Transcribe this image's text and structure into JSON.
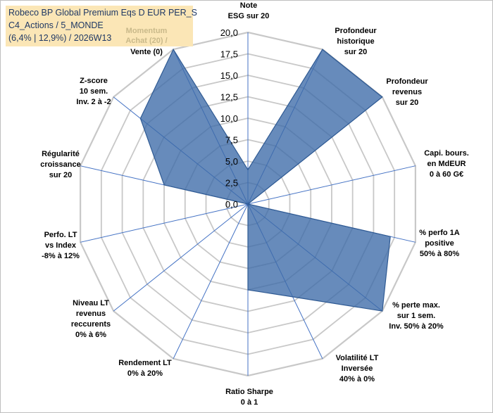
{
  "header": {
    "line1": "Robeco BP Global Premium Eqs D EUR PER_S",
    "line2": "C4_Actions / 5_MONDE",
    "line3": "(6,4% | 12,9%) / 2026W13"
  },
  "legend": {
    "line1": "Momentum",
    "line2": "Achat (20) /",
    "line3": "Vente (0)"
  },
  "colors": {
    "fill": "#3c6aa8",
    "stroke": "#2f5a93",
    "grid": "#c8c8c8",
    "spoke": "#4472c4"
  },
  "chart_data": {
    "type": "radar",
    "rmax": 20,
    "ticks": [
      "0,0",
      "2,5",
      "5,0",
      "7,5",
      "10,0",
      "12,5",
      "15,0",
      "17,5",
      "20,0"
    ],
    "axes": [
      {
        "label": [
          "Note",
          "ESG sur 20"
        ],
        "value": 4
      },
      {
        "label": [
          "Profondeur",
          "historique",
          "sur 20"
        ],
        "value": 20
      },
      {
        "label": [
          "Profondeur",
          "revenus",
          "sur 20"
        ],
        "value": 20
      },
      {
        "label": [
          "Capi. bours.",
          "en MdEUR",
          "0 à 60 G€"
        ],
        "value": 0
      },
      {
        "label": [
          "% perfo 1A",
          "positive",
          "50% à 80%"
        ],
        "value": 17
      },
      {
        "label": [
          "% perte max.",
          "sur 1 sem.",
          "Inv. 50% à 20%"
        ],
        "value": 20
      },
      {
        "label": [
          "Volatilité LT",
          "Inversée",
          "40% à 0%"
        ],
        "value": 12
      },
      {
        "label": [
          "Ratio Sharpe",
          "0 à 1"
        ],
        "value": 10
      },
      {
        "label": [
          "Rendement LT",
          "0% à 20%"
        ],
        "value": 0
      },
      {
        "label": [
          "Niveau LT",
          "revenus",
          "reccurents",
          "0% à 6%"
        ],
        "value": 0
      },
      {
        "label": [
          "Perfo. LT",
          "vs Index",
          "-8% à 12%"
        ],
        "value": 0
      },
      {
        "label": [
          "Régularité",
          "croissance",
          "sur 20"
        ],
        "value": 10
      },
      {
        "label": [
          "Z-score",
          "10 sem.",
          "Inv. 2 à -2"
        ],
        "value": 16
      },
      {
        "label": [
          "Momentum",
          "Achat (20) /",
          "Vente (0)"
        ],
        "value": 20
      }
    ]
  }
}
